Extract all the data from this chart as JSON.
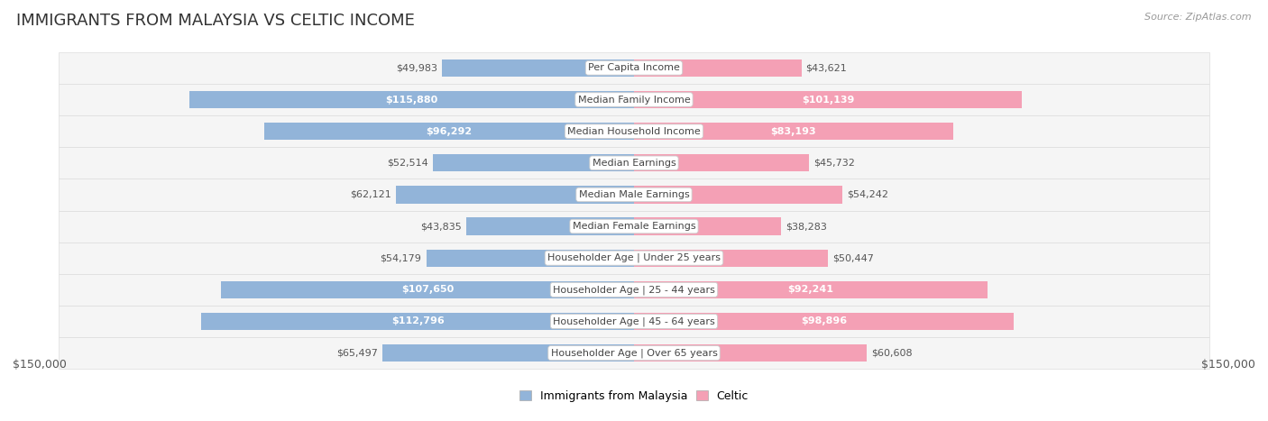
{
  "title": "IMMIGRANTS FROM MALAYSIA VS CELTIC INCOME",
  "source": "Source: ZipAtlas.com",
  "categories": [
    "Per Capita Income",
    "Median Family Income",
    "Median Household Income",
    "Median Earnings",
    "Median Male Earnings",
    "Median Female Earnings",
    "Householder Age | Under 25 years",
    "Householder Age | 25 - 44 years",
    "Householder Age | 45 - 64 years",
    "Householder Age | Over 65 years"
  ],
  "malaysia_values": [
    49983,
    115880,
    96292,
    52514,
    62121,
    43835,
    54179,
    107650,
    112796,
    65497
  ],
  "celtic_values": [
    43621,
    101139,
    83193,
    45732,
    54242,
    38283,
    50447,
    92241,
    98896,
    60608
  ],
  "malaysia_color": "#92b4d9",
  "celtic_color": "#f4a0b5",
  "max_value": 150000,
  "label_inside_threshold": 75000,
  "bg_color": "#ffffff",
  "row_bg_color": "#f5f5f5",
  "legend_malaysia": "Immigrants from Malaysia",
  "legend_celtic": "Celtic",
  "bottom_label": "$150,000",
  "title_fontsize": 13,
  "value_fontsize": 8,
  "category_fontsize": 8,
  "bar_height": 0.55
}
